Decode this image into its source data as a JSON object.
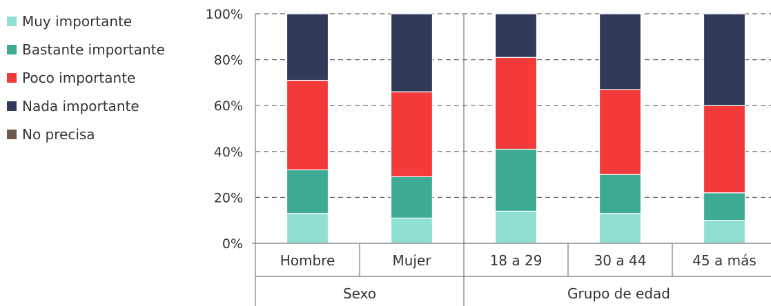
{
  "chart_data": {
    "type": "bar",
    "stacked": true,
    "percent": true,
    "title": "",
    "xlabel": "",
    "ylabel": "",
    "ylim": [
      0,
      100
    ],
    "yticks": [
      "0%",
      "20%",
      "40%",
      "60%",
      "80%",
      "100%"
    ],
    "grid": true,
    "legend_position": "left",
    "categories": [
      "Hombre",
      "Mujer",
      "18 a 29",
      "30 a 44",
      "45 a más"
    ],
    "groups": [
      {
        "label": "Sexo",
        "categories": [
          "Hombre",
          "Mujer"
        ]
      },
      {
        "label": "Grupo de edad",
        "categories": [
          "18 a 29",
          "30 a 44",
          "45 a más"
        ]
      }
    ],
    "series": [
      {
        "name": "Muy importante",
        "color": "#8fe0d2",
        "values": [
          13,
          11,
          14,
          13,
          10
        ]
      },
      {
        "name": "Bastante importante",
        "color": "#3dab94",
        "values": [
          19,
          18,
          27,
          17,
          12
        ]
      },
      {
        "name": "Poco importante",
        "color": "#f23a3a",
        "values": [
          39,
          37,
          40,
          37,
          38
        ]
      },
      {
        "name": "Nada importante",
        "color": "#323a5a",
        "values": [
          29,
          34,
          19,
          33,
          40
        ]
      },
      {
        "name": "No precisa",
        "color": "#6a5a50",
        "values": [
          0,
          0,
          0,
          0,
          0
        ]
      }
    ]
  }
}
